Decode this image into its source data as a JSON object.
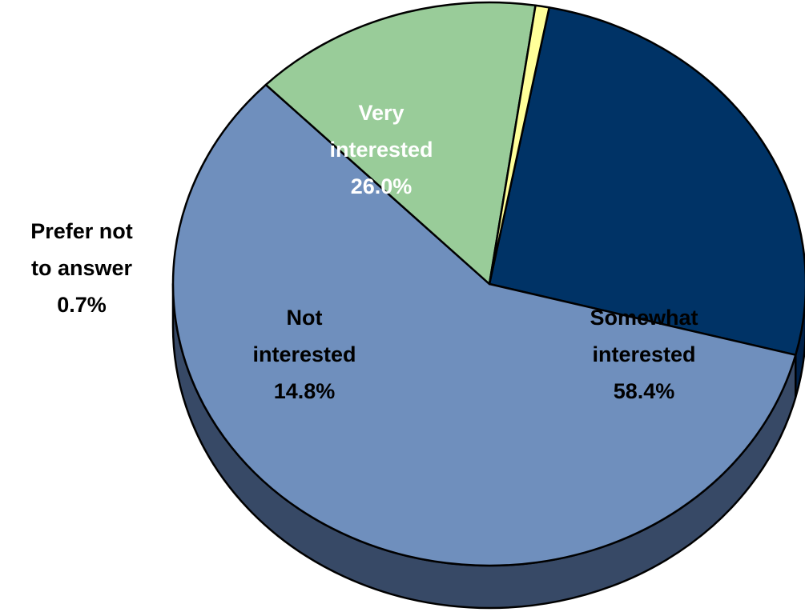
{
  "chart_data": {
    "type": "pie",
    "title": "",
    "style": "3d",
    "slices": [
      {
        "label_lines": [
          "Very",
          "interested"
        ],
        "value_text": "26.0%",
        "value": 26.0,
        "color": "#003366",
        "side_color": "#00214a",
        "label_color": "#ffffff"
      },
      {
        "label_lines": [
          "Somewhat",
          "interested"
        ],
        "value_text": "58.4%",
        "value": 58.4,
        "color": "#6f8fbd",
        "side_color": "#374966",
        "label_color": "#000000"
      },
      {
        "label_lines": [
          "Not",
          "interested"
        ],
        "value_text": "14.8%",
        "value": 14.8,
        "color": "#99cc99",
        "side_color": "#52694f",
        "label_color": "#000000"
      },
      {
        "label_lines": [
          "Prefer not",
          "to answer"
        ],
        "value_text": "0.7%",
        "value": 0.7,
        "color": "#ffff99",
        "side_color": "#8a8a55",
        "label_color": "#000000"
      }
    ]
  }
}
